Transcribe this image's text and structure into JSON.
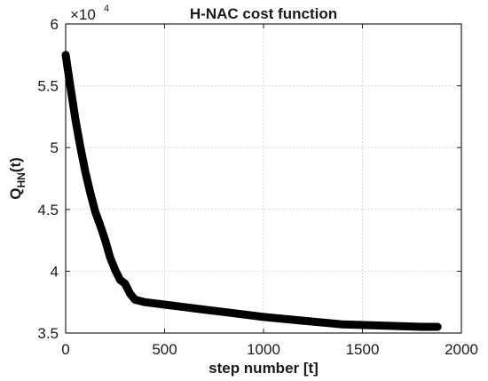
{
  "chart_data": {
    "type": "line",
    "title": "H-NAC cost function",
    "xlabel": "step number [t]",
    "ylabel": "Q_HN(t)",
    "ylabel_main": "Q",
    "ylabel_sub": "HN",
    "ylabel_tail": "(t)",
    "y_multiplier": "×10",
    "y_multiplier_exponent": "4",
    "xlim": [
      0,
      2000
    ],
    "ylim": [
      3.5,
      6
    ],
    "xticks": [
      0,
      500,
      1000,
      1500,
      2000
    ],
    "xtick_labels": [
      "0",
      "500",
      "1000",
      "1500",
      "2000"
    ],
    "yticks": [
      3.5,
      4,
      4.5,
      5,
      5.5,
      6
    ],
    "ytick_labels": [
      "3.5",
      "4",
      "4.5",
      "5",
      "5.5",
      "6"
    ],
    "grid": true,
    "series": [
      {
        "color": "#000000",
        "x": [
          0,
          25,
          50,
          75,
          100,
          125,
          150,
          175,
          200,
          225,
          250,
          275,
          300,
          325,
          350,
          400,
          500,
          600,
          700,
          800,
          1000,
          1200,
          1400,
          1600,
          1800,
          1880
        ],
        "y": [
          5.75,
          5.48,
          5.22,
          5.0,
          4.8,
          4.63,
          4.48,
          4.37,
          4.25,
          4.11,
          4.01,
          3.93,
          3.9,
          3.82,
          3.77,
          3.75,
          3.73,
          3.71,
          3.69,
          3.67,
          3.63,
          3.6,
          3.57,
          3.56,
          3.55,
          3.55
        ]
      }
    ]
  }
}
